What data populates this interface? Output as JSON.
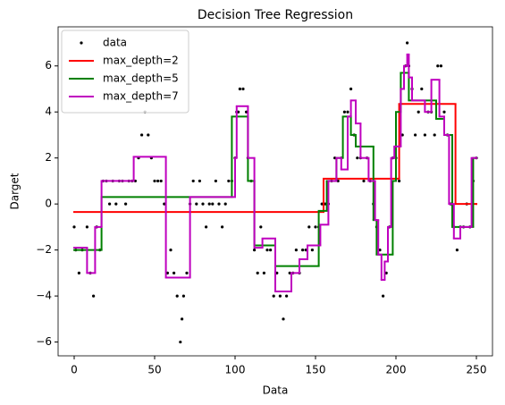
{
  "chart_data": {
    "type": "step",
    "title": "Decision Tree Regression",
    "x_label": "Data",
    "y_label": "Darget",
    "xlim": [
      -10,
      260
    ],
    "ylim": [
      -6.6,
      7.7
    ],
    "xticks": [
      0,
      50,
      100,
      150,
      200,
      250
    ],
    "yticks": [
      {
        "value": -6,
        "label": "−6"
      },
      {
        "value": -4,
        "label": "−4"
      },
      {
        "value": -2,
        "label": "−2"
      },
      0,
      2,
      4,
      6
    ],
    "grid": false,
    "legend": "upper left",
    "series": [
      {
        "name": "data",
        "type": "scatter",
        "color": "#000000",
        "x": [
          0,
          1,
          3,
          5,
          8,
          10,
          12,
          14,
          16,
          18,
          20,
          22,
          24,
          26,
          28,
          30,
          32,
          34,
          36,
          38,
          40,
          42,
          44,
          46,
          48,
          50,
          52,
          54,
          56,
          58,
          60,
          62,
          64,
          66,
          67,
          68,
          70,
          72,
          74,
          76,
          78,
          80,
          82,
          84,
          86,
          88,
          90,
          92,
          94,
          96,
          98,
          100,
          101,
          102,
          103,
          105,
          107,
          108,
          110,
          112,
          114,
          116,
          118,
          120,
          122,
          124,
          126,
          128,
          130,
          132,
          134,
          136,
          138,
          140,
          142,
          144,
          146,
          148,
          150,
          152,
          154,
          156,
          158,
          160,
          162,
          164,
          166,
          168,
          170,
          172,
          174,
          176,
          178,
          180,
          182,
          184,
          186,
          188,
          190,
          192,
          194,
          196,
          198,
          200,
          202,
          204,
          206,
          207,
          208,
          210,
          212,
          214,
          216,
          218,
          220,
          222,
          224,
          226,
          228,
          230,
          232,
          234,
          236,
          238,
          240,
          242,
          244,
          246,
          248,
          250
        ],
        "values": [
          -1,
          -2,
          -3,
          -2,
          -1,
          -3,
          -4,
          -1,
          -2,
          1,
          1,
          0,
          1,
          0,
          1,
          1,
          0,
          1,
          1,
          1,
          2,
          3,
          4,
          3,
          2,
          1,
          1,
          1,
          0,
          -3,
          -2,
          -3,
          -4,
          -6,
          -5,
          -4,
          -3,
          0,
          1,
          0,
          1,
          0,
          -1,
          0,
          0,
          1,
          0,
          -1,
          0,
          1,
          1,
          2,
          4,
          4,
          5,
          5,
          4,
          2,
          1,
          -2,
          -3,
          -1,
          -3,
          -2,
          -2,
          -4,
          -3,
          -4,
          -5,
          -4,
          -3,
          -3,
          -2,
          -3,
          -2,
          -2,
          -1,
          -2,
          -1,
          -1,
          0,
          0,
          0,
          1,
          2,
          1,
          2,
          4,
          4,
          5,
          3,
          2,
          2,
          1,
          2,
          1,
          0,
          -1,
          -2,
          -4,
          -3,
          -1,
          2,
          2,
          1,
          3,
          6,
          7,
          6,
          5,
          3,
          4,
          5,
          3,
          4,
          4,
          3,
          6,
          6,
          4,
          3,
          0,
          -1,
          -2,
          -1,
          -1,
          0,
          -1,
          1,
          2
        ]
      },
      {
        "name": "max_depth=2",
        "type": "step",
        "color": "#ff0000",
        "x": [
          0,
          155,
          202,
          237,
          250
        ],
        "values": [
          -0.35,
          1.1,
          4.35,
          0.0,
          0.0
        ]
      },
      {
        "name": "max_depth=5",
        "type": "step",
        "color": "#008000",
        "x": [
          0,
          17,
          98,
          108,
          112,
          125,
          152,
          157,
          163,
          167,
          172,
          175,
          186,
          188,
          198,
          200,
          203,
          208,
          225,
          230,
          235,
          248,
          250
        ],
        "values": [
          -2.0,
          0.3,
          3.8,
          1.0,
          -1.8,
          -2.7,
          -0.3,
          1.0,
          2.0,
          3.8,
          3.0,
          2.5,
          -0.7,
          -2.2,
          1.0,
          4.0,
          5.7,
          4.5,
          3.7,
          3.0,
          -1.0,
          2.0,
          2.0
        ]
      },
      {
        "name": "max_depth=7",
        "type": "step",
        "color": "#bf00bf",
        "x": [
          0,
          8,
          13,
          17,
          37,
          57,
          72,
          100,
          101,
          108,
          112,
          117,
          125,
          135,
          140,
          145,
          153,
          158,
          163,
          166,
          170,
          172,
          175,
          178,
          183,
          187,
          189,
          191,
          193,
          195,
          197,
          199,
          203,
          205,
          207,
          208,
          210,
          218,
          222,
          227,
          230,
          233,
          236,
          240,
          247,
          250
        ],
        "values": [
          -1.9,
          -3.0,
          -1.0,
          1.0,
          2.05,
          -3.2,
          0.3,
          2.0,
          4.25,
          2.0,
          -1.9,
          -1.5,
          -3.8,
          -3.0,
          -2.4,
          -1.8,
          -0.9,
          1.0,
          2.0,
          1.5,
          3.8,
          4.5,
          3.5,
          2.0,
          1.0,
          -0.7,
          -2.2,
          -3.3,
          -2.5,
          -1.0,
          2.0,
          2.5,
          5.0,
          6.0,
          6.5,
          5.5,
          4.5,
          4.0,
          5.4,
          3.8,
          3.0,
          0.0,
          -1.5,
          -1.0,
          2.0,
          2.0
        ]
      }
    ]
  }
}
